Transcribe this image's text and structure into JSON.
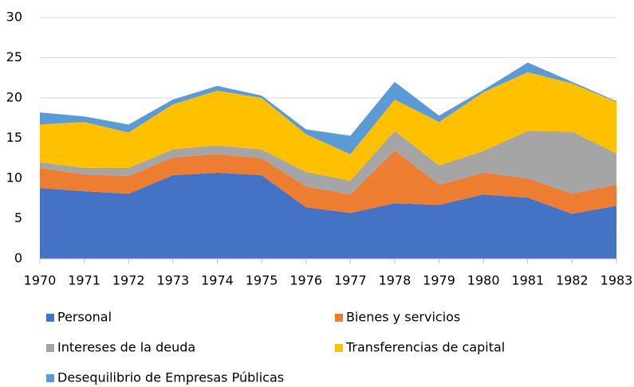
{
  "chart_data": {
    "type": "stacked_area",
    "categories": [
      "1970",
      "1971",
      "1972",
      "1973",
      "1974",
      "1975",
      "1976",
      "1977",
      "1978",
      "1979",
      "1980",
      "1981",
      "1982",
      "1983"
    ],
    "series": [
      {
        "name": "Personal",
        "color": "#4472c4",
        "values": [
          8.8,
          8.4,
          8.1,
          10.4,
          10.7,
          10.4,
          6.4,
          5.7,
          6.9,
          6.7,
          8.0,
          7.6,
          5.6,
          6.6
        ]
      },
      {
        "name": "Bienes y servicios",
        "color": "#ed7d31",
        "values": [
          2.5,
          2.1,
          2.2,
          2.2,
          2.3,
          2.1,
          2.6,
          2.3,
          6.6,
          2.5,
          2.7,
          2.4,
          2.5,
          2.6
        ]
      },
      {
        "name": "Intereses de la deuda",
        "color": "#a5a5a5",
        "values": [
          0.7,
          0.8,
          1.0,
          1.0,
          1.1,
          1.1,
          1.8,
          1.7,
          2.4,
          2.4,
          2.7,
          5.9,
          7.7,
          3.9
        ]
      },
      {
        "name": "Transferencias de capital",
        "color": "#ffc000",
        "values": [
          4.7,
          5.7,
          4.4,
          5.6,
          6.8,
          6.4,
          4.7,
          3.3,
          3.9,
          5.4,
          7.3,
          7.3,
          6.0,
          6.4
        ]
      },
      {
        "name": "Desequilibrio de Empresas Públicas",
        "color": "#5b9bd5",
        "values": [
          1.5,
          0.7,
          1.0,
          0.6,
          0.6,
          0.3,
          0.6,
          2.3,
          2.2,
          0.8,
          0.3,
          1.2,
          0.2,
          0.1
        ]
      }
    ],
    "ylim": [
      0,
      30
    ],
    "yticks": [
      0,
      5,
      10,
      15,
      20,
      25,
      30
    ],
    "grid": true
  }
}
